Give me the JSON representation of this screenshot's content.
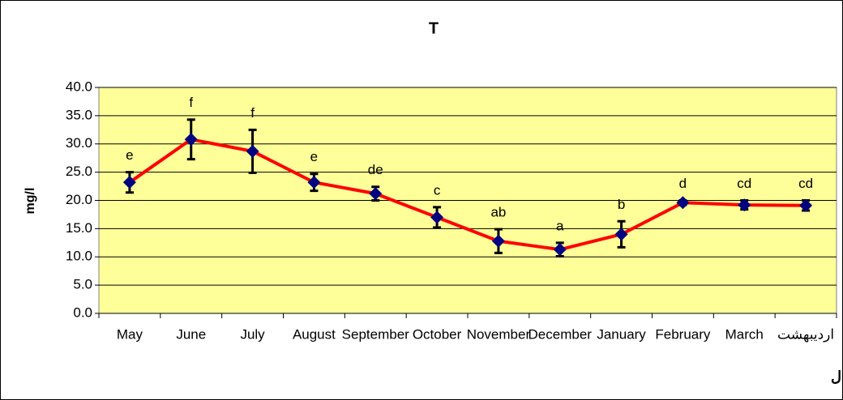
{
  "chart_data": {
    "type": "line",
    "title": "T",
    "y_label": "mg/l",
    "x_label": "ماههای سال",
    "categories": [
      "May",
      "June",
      "July",
      "August",
      "September",
      "October",
      "November",
      "December",
      "January",
      "February",
      "March",
      "اردیبهشت"
    ],
    "series": [
      {
        "color": "#ff0000",
        "marker_color": "#000080",
        "values": [
          23.2,
          30.8,
          28.7,
          23.2,
          21.2,
          17.0,
          12.8,
          11.3,
          14.0,
          19.6,
          19.2,
          19.1
        ],
        "errors": [
          1.8,
          3.5,
          3.8,
          1.5,
          1.2,
          1.8,
          2.1,
          1.2,
          2.3,
          0.4,
          0.8,
          0.9
        ],
        "letters": [
          "e",
          "f",
          "f",
          "e",
          "de",
          "c",
          "ab",
          "a",
          "b",
          "d",
          "cd",
          "cd"
        ]
      }
    ],
    "ylim": [
      0,
      40
    ],
    "yticks": [
      {
        "value": 0,
        "label": "0.0"
      },
      {
        "value": 5,
        "label": "5.0"
      },
      {
        "value": 10,
        "label": "10.0"
      },
      {
        "value": 15,
        "label": "15.0"
      },
      {
        "value": 20,
        "label": "20.0"
      },
      {
        "value": 25,
        "label": "25.0"
      },
      {
        "value": 30,
        "label": "30.0"
      },
      {
        "value": 35,
        "label": "35.0"
      },
      {
        "value": 40,
        "label": "40.0"
      }
    ],
    "grid": true,
    "plot_background": "#ffff99"
  }
}
